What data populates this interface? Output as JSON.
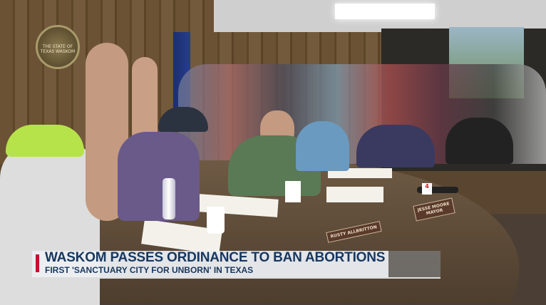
{
  "lower_third": {
    "headline": "WASKOM PASSES ORDINANCE TO BAN ABORTIONS",
    "subheadline": "FIRST 'SANCTUARY CITY FOR UNBORN' IN TEXAS",
    "accent_color": "#c8102e",
    "text_color": "#17375e"
  },
  "scene": {
    "seal_text": "THE STATE OF TEXAS WASKOM",
    "nameplates": [
      {
        "name": "RUSTY ALLBRITTON"
      },
      {
        "name": "JESSE MOORE",
        "title": "MAYOR"
      }
    ]
  }
}
